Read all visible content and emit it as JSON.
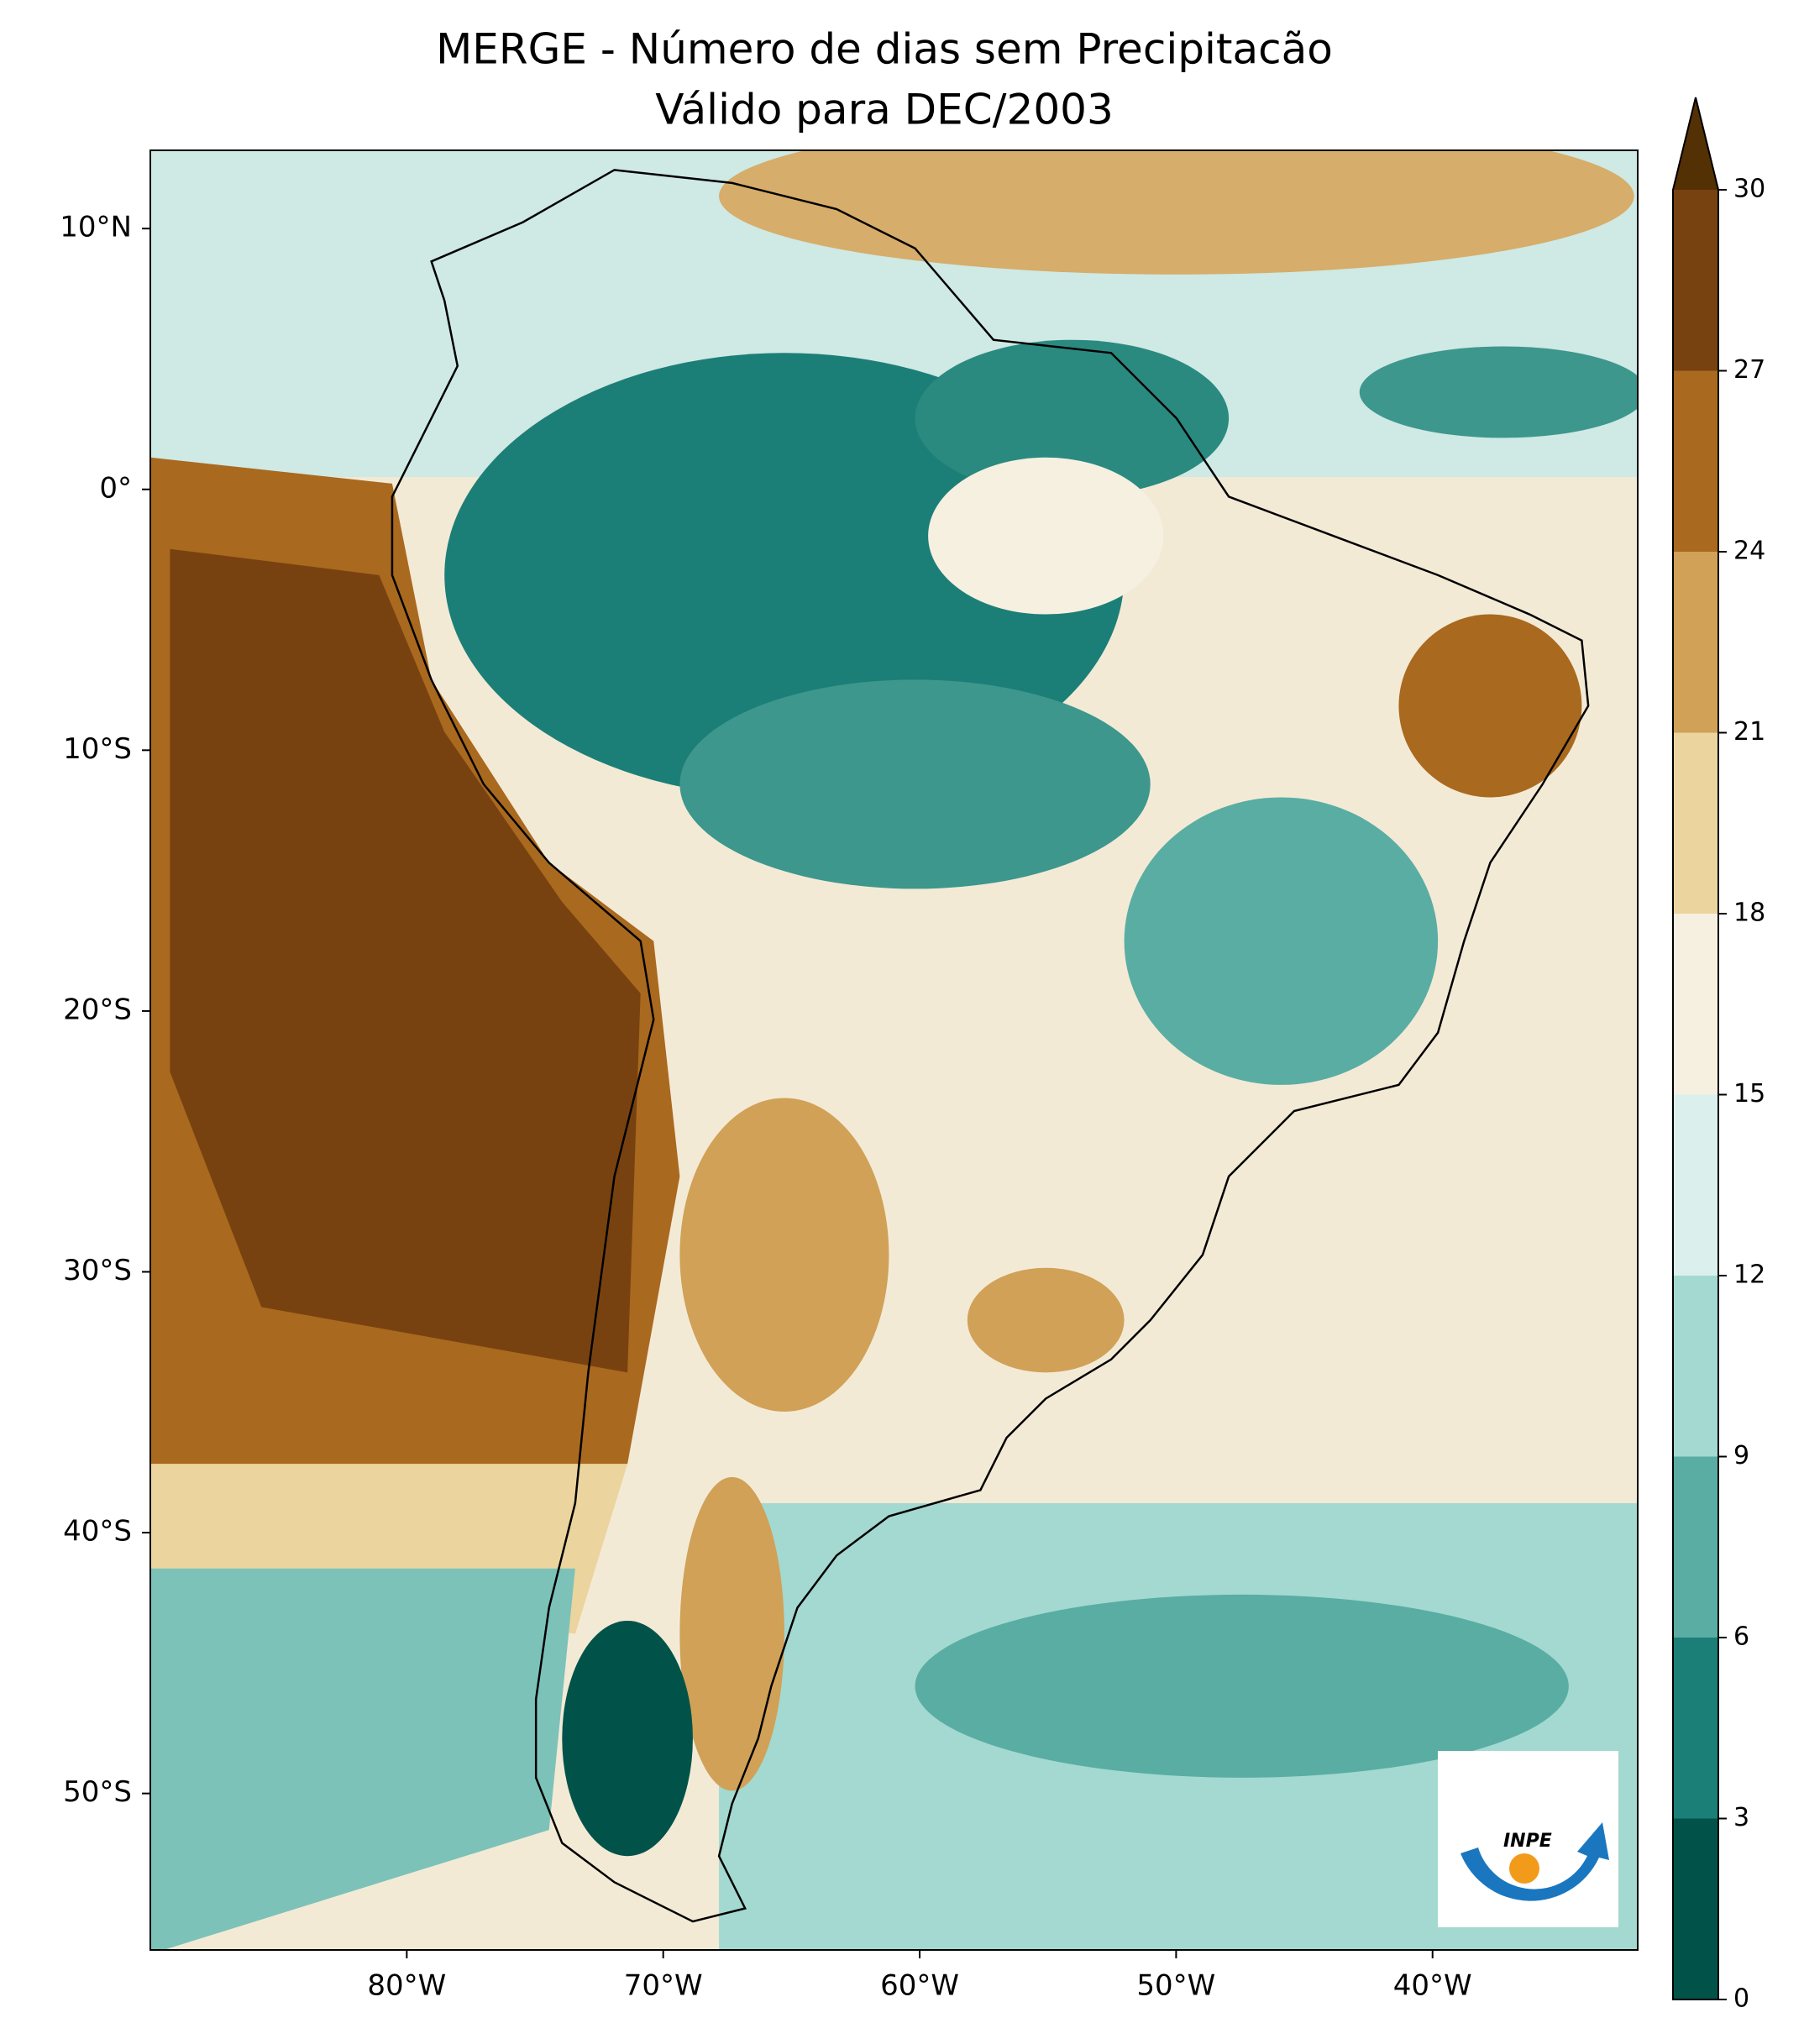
{
  "map": {
    "type": "contour",
    "title": [
      "MERGE - Número de dias sem Precipitacão",
      "Válido para DEC/2003"
    ],
    "xlim": [
      -90,
      -32
    ],
    "ylim": [
      -56,
      13
    ],
    "xticks": [
      {
        "value": -80,
        "label": "80°W"
      },
      {
        "value": -70,
        "label": "70°W"
      },
      {
        "value": -60,
        "label": "60°W"
      },
      {
        "value": -50,
        "label": "50°W"
      },
      {
        "value": -40,
        "label": "40°W"
      }
    ],
    "yticks": [
      {
        "value": 10,
        "label": "10°N"
      },
      {
        "value": 0,
        "label": "0°"
      },
      {
        "value": -10,
        "label": "10°S"
      },
      {
        "value": -20,
        "label": "20°S"
      },
      {
        "value": -30,
        "label": "30°S"
      },
      {
        "value": -40,
        "label": "40°S"
      },
      {
        "value": -50,
        "label": "50°S"
      }
    ]
  },
  "colorbar": {
    "ticks": [
      0,
      3,
      6,
      9,
      12,
      15,
      18,
      21,
      24,
      27,
      30
    ],
    "colors": [
      "#01534a",
      "#1c7f77",
      "#5aada3",
      "#a3d9d1",
      "#dbf0ed",
      "#f6f0e0",
      "#ecd49f",
      "#d0a157",
      "#a9691f",
      "#784210"
    ],
    "extend_color": "#543005"
  },
  "logo": {
    "text": "INPE"
  }
}
